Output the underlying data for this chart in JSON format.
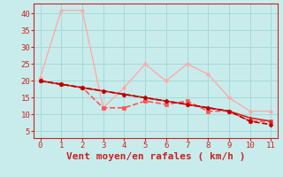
{
  "xlabel": "Vent moyen/en rafales ( km/h )",
  "background_color": "#c8ecec",
  "grid_color": "#a8d8d8",
  "x_values": [
    0,
    1,
    2,
    3,
    4,
    5,
    6,
    7,
    8,
    9,
    10,
    11
  ],
  "line1": {
    "y": [
      21,
      41,
      41,
      12,
      18,
      25,
      20,
      25,
      22,
      15,
      11,
      11
    ],
    "color": "#ffaaaa",
    "marker": "o",
    "markersize": 2.5,
    "linewidth": 1.0,
    "linestyle": "-"
  },
  "line2": {
    "y": [
      20,
      19,
      18,
      12,
      12,
      14,
      13,
      14,
      11,
      11,
      8,
      8
    ],
    "color": "#ff5555",
    "marker": "s",
    "markersize": 2.5,
    "linewidth": 1.2,
    "linestyle": "--"
  },
  "line3": {
    "y": [
      20,
      19,
      18,
      17,
      16,
      15,
      14,
      13,
      12,
      11,
      9,
      8
    ],
    "color": "#dd2222",
    "marker": "^",
    "markersize": 2.5,
    "linewidth": 1.2,
    "linestyle": "-"
  },
  "line4": {
    "y": [
      20,
      19,
      18,
      17,
      16,
      15,
      14,
      13,
      12,
      11,
      8,
      7
    ],
    "color": "#bb0000",
    "marker": "D",
    "markersize": 2.5,
    "linewidth": 1.2,
    "linestyle": "--"
  },
  "ylim": [
    3,
    43
  ],
  "xlim": [
    -0.3,
    11.3
  ],
  "yticks": [
    5,
    10,
    15,
    20,
    25,
    30,
    35,
    40
  ],
  "xticks": [
    0,
    1,
    2,
    3,
    4,
    5,
    6,
    7,
    8,
    9,
    10,
    11
  ],
  "tick_color": "#cc2222",
  "label_color": "#cc2222",
  "xlabel_fontsize": 8,
  "tick_fontsize": 6.5
}
